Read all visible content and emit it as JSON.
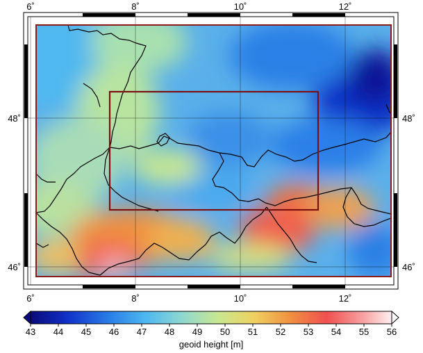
{
  "map": {
    "lon_ticks": [
      "6˚",
      "8˚",
      "10˚",
      "12˚"
    ],
    "lat_ticks": [
      "48˚",
      "46˚"
    ],
    "outer_region_color": "#8b1a1a",
    "inner_region_color": "#7a1010",
    "boundary_color": "#000000"
  },
  "colorbar": {
    "label": "geoid height [m]",
    "ticks": [
      "43",
      "44",
      "45",
      "46",
      "47",
      "48",
      "49",
      "50",
      "51",
      "52",
      "53",
      "54",
      "55",
      "56"
    ],
    "range": [
      43,
      56
    ],
    "palette": [
      "#0a0a78",
      "#1030c8",
      "#2a7fe8",
      "#4fb8f0",
      "#8fd8d0",
      "#c8e890",
      "#f0d060",
      "#f09040",
      "#f05050",
      "#f8a0a0",
      "#fff0f0"
    ]
  },
  "chart_data": {
    "type": "heatmap",
    "title": "",
    "xlabel": "",
    "ylabel": "",
    "x_ticks": [
      "6˚",
      "8˚",
      "10˚",
      "12˚"
    ],
    "y_ticks": [
      "48˚",
      "46˚"
    ],
    "colorbar_label": "geoid height [m]",
    "colorbar_range": [
      43,
      56
    ],
    "grid": true
  }
}
